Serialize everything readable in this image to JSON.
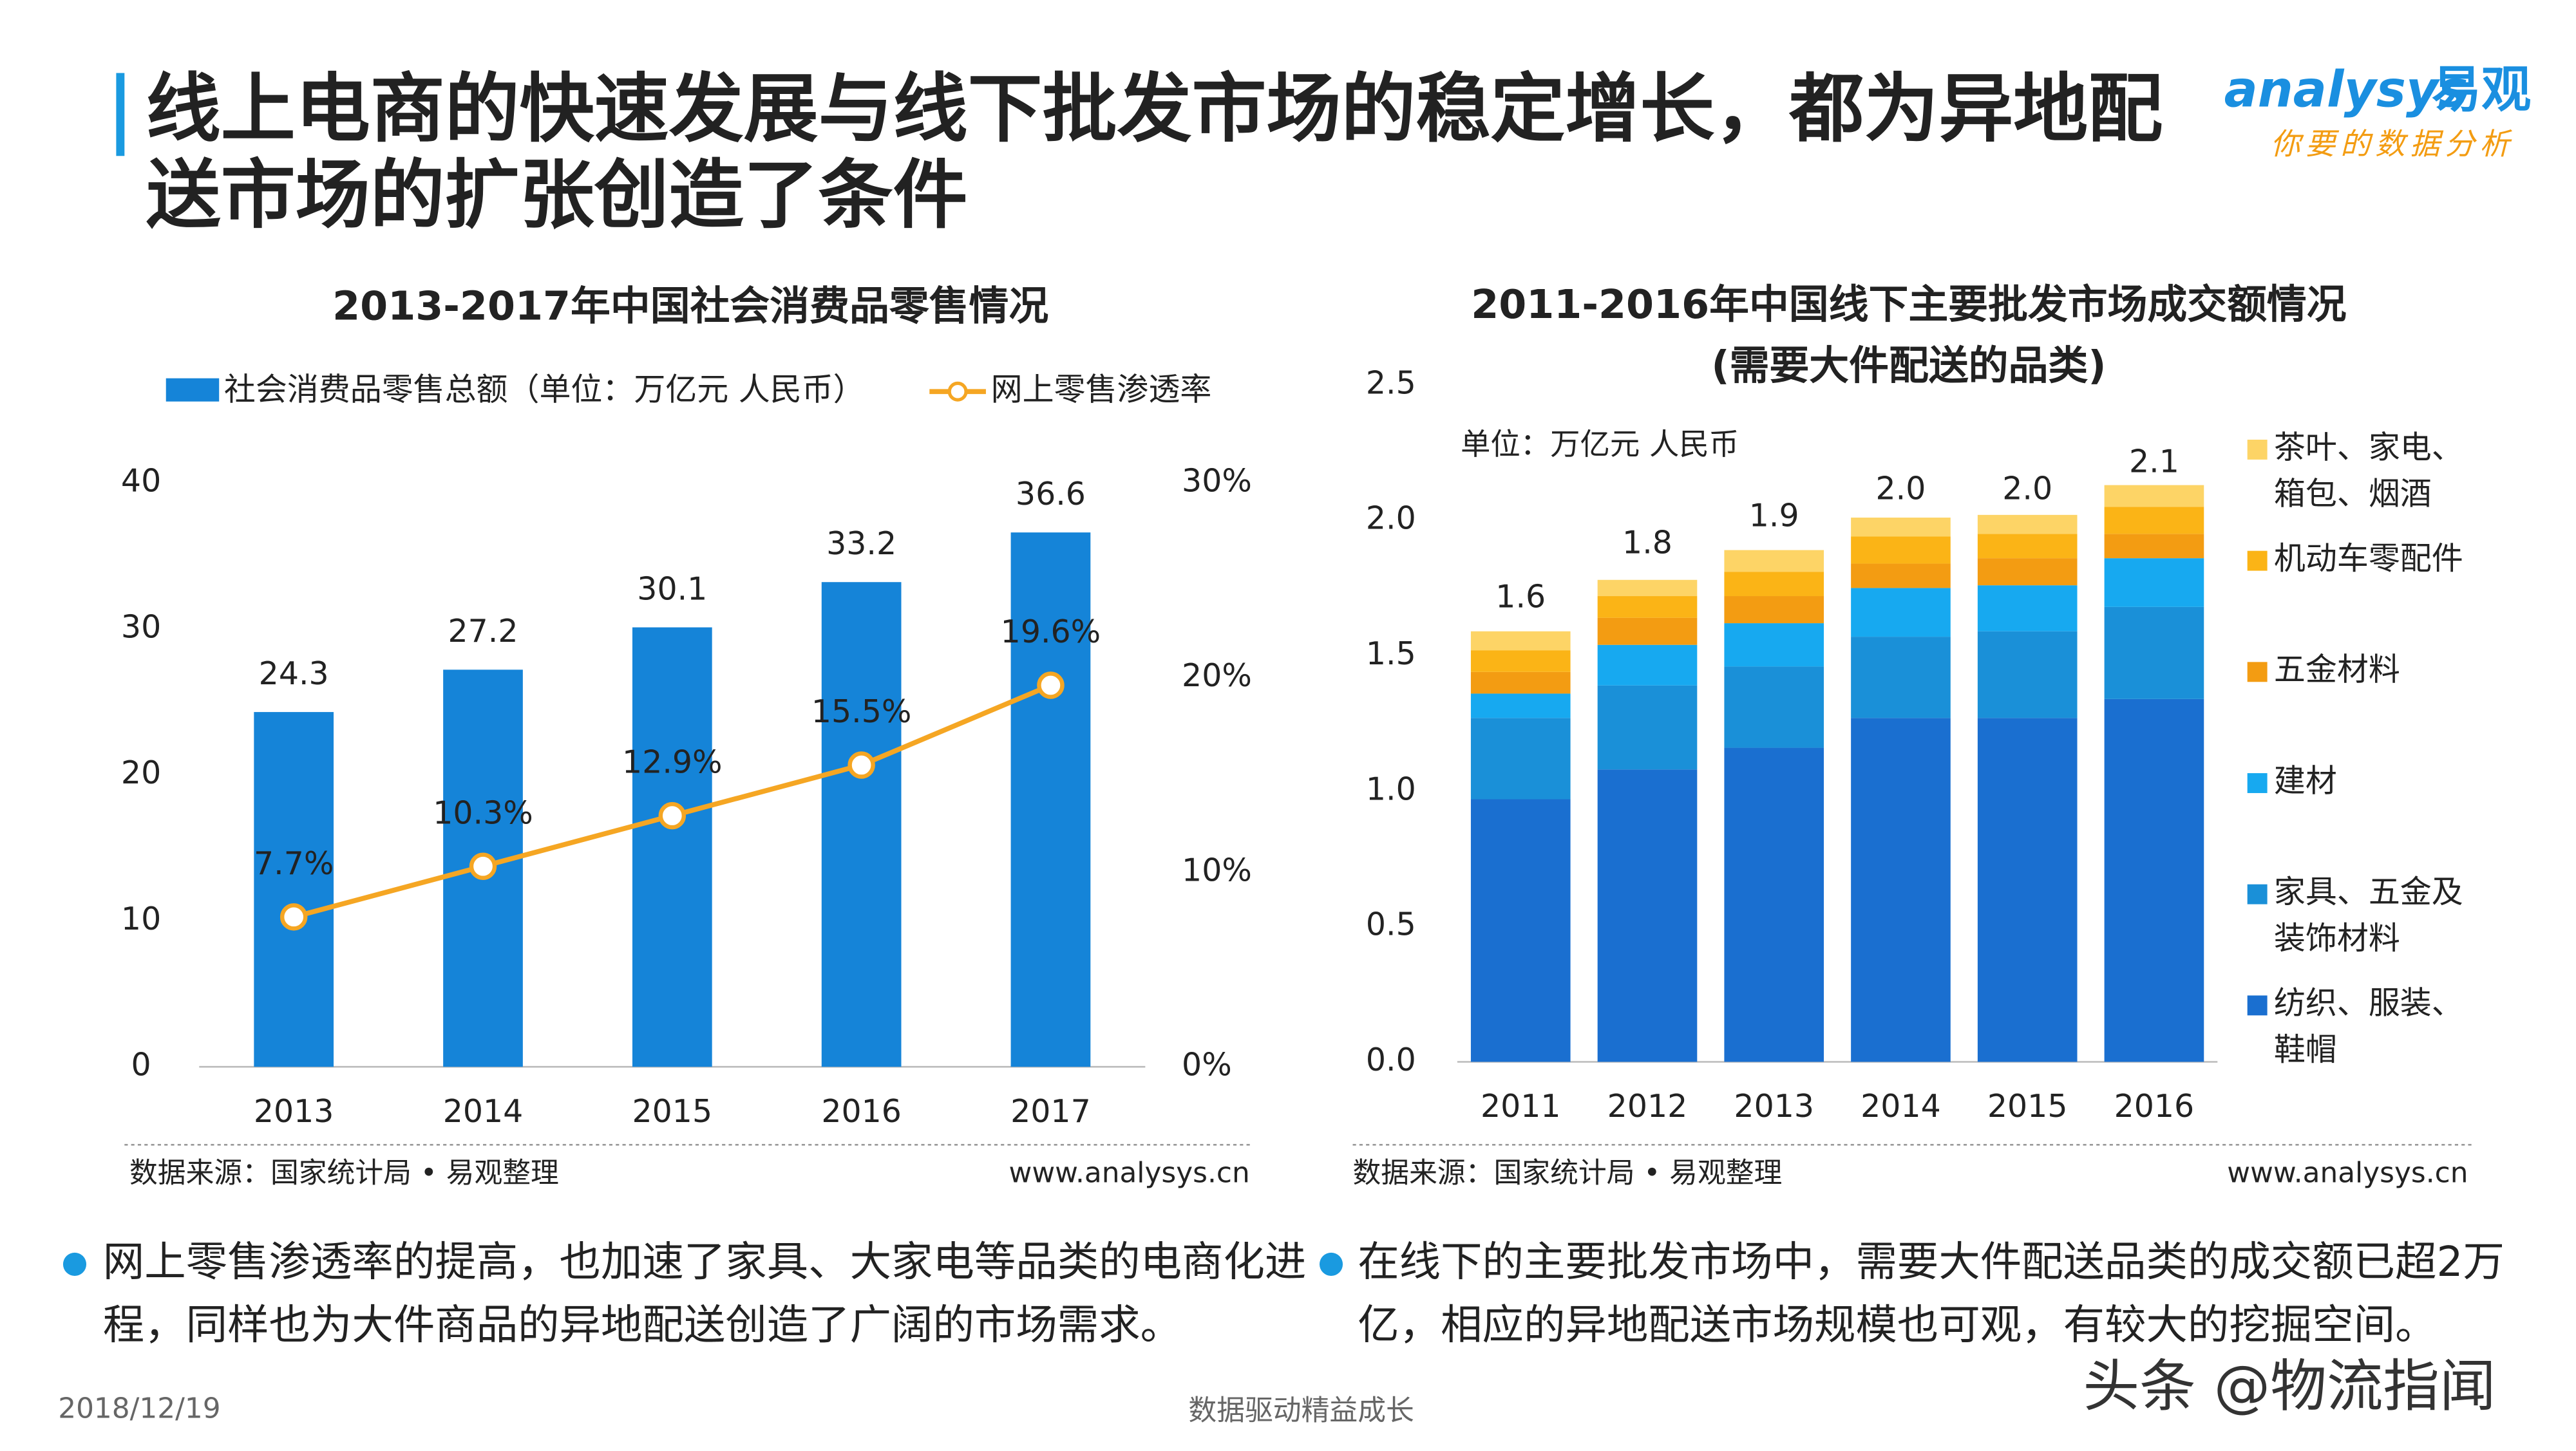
{
  "header": {
    "title": "线上电商的快速发展与线下批发市场的稳定增长，都为异地配送市场的扩张创造了条件",
    "logo": {
      "brand": "analysys",
      "name": "易观",
      "slogan": "你要的数据分析"
    }
  },
  "chart_data": [
    {
      "type": "combo",
      "title": "2013-2017年中国社会消费品零售情况",
      "categories": [
        "2013",
        "2014",
        "2015",
        "2016",
        "2017"
      ],
      "series": [
        {
          "name": "社会消费品零售总额（单位：万亿元 人民币）",
          "color": "#1584d8",
          "values": [
            24.3,
            27.2,
            30.1,
            33.2,
            36.6
          ]
        },
        {
          "name": "网上零售渗透率",
          "color": "#f5a623",
          "axis": "y2",
          "values": [
            7.7,
            10.3,
            12.9,
            15.5,
            19.6
          ],
          "value_labels": [
            "7.7%",
            "10.3%",
            "12.9%",
            "15.5%",
            "19.6%"
          ]
        }
      ],
      "ylim": [
        0,
        40
      ],
      "yticks": [
        0,
        10,
        20,
        30,
        40
      ],
      "y2lim": [
        0,
        30
      ],
      "y2ticks": [
        {
          "value": 0,
          "label": "0%"
        },
        {
          "value": 10,
          "label": "10%"
        },
        {
          "value": 20,
          "label": "20%"
        },
        {
          "value": 30,
          "label": "30%"
        }
      ],
      "source": "数据来源：国家统计局 • 易观整理",
      "website": "www.analysys.cn"
    },
    {
      "type": "stacked_bar",
      "title": "2011-2016年中国线下主要批发市场成交额情况",
      "subtitle": "(需要大件配送的品类)",
      "unit": "单位：万亿元 人民币",
      "categories": [
        "2011",
        "2012",
        "2013",
        "2014",
        "2015",
        "2016"
      ],
      "series": [
        {
          "name": "纺织、服装、鞋帽",
          "color": "#1a6fd0",
          "values": [
            0.97,
            1.08,
            1.16,
            1.27,
            1.27,
            1.34
          ]
        },
        {
          "name": "家具、五金及装饰材料",
          "color": "#1a90d8",
          "values": [
            0.3,
            0.31,
            0.3,
            0.3,
            0.32,
            0.34
          ]
        },
        {
          "name": "建材",
          "color": "#17a9f0",
          "values": [
            0.09,
            0.15,
            0.16,
            0.18,
            0.17,
            0.18
          ]
        },
        {
          "name": "五金材料",
          "color": "#f39c12",
          "values": [
            0.08,
            0.1,
            0.1,
            0.09,
            0.1,
            0.09
          ]
        },
        {
          "name": "机动车零配件",
          "color": "#fbb416",
          "values": [
            0.08,
            0.08,
            0.09,
            0.1,
            0.09,
            0.1
          ]
        },
        {
          "name": "茶叶、家电、箱包、烟酒",
          "color": "#fdd466",
          "values": [
            0.07,
            0.06,
            0.08,
            0.07,
            0.07,
            0.08
          ]
        }
      ],
      "totals": [
        1.6,
        1.8,
        1.9,
        2.0,
        2.0,
        2.1
      ],
      "total_labels": [
        "1.6",
        "1.8",
        "1.9",
        "2.0",
        "2.0",
        "2.1"
      ],
      "ylim": [
        0,
        2.5
      ],
      "yticks": [
        {
          "value": 0,
          "label": "0.0"
        },
        0.5,
        {
          "value": 1,
          "label": "1.0"
        },
        1.5,
        {
          "value": 2,
          "label": "2.0"
        },
        2.5
      ],
      "source": "数据来源：国家统计局 • 易观整理",
      "website": "www.analysys.cn"
    }
  ],
  "notes": [
    "网上零售渗透率的提高，也加速了家具、大家电等品类的电商化进程，同样也为大件商品的异地配送创造了广阔的市场需求。",
    "在线下的主要批发市场中，需要大件配送品类的成交额已超2万亿，相应的异地配送市场规模也可观，有较大的挖掘空间。"
  ],
  "footer": {
    "date": "2018/12/19",
    "slogan": "数据驱动精益成长",
    "watermark": "头条 @物流指闻"
  }
}
